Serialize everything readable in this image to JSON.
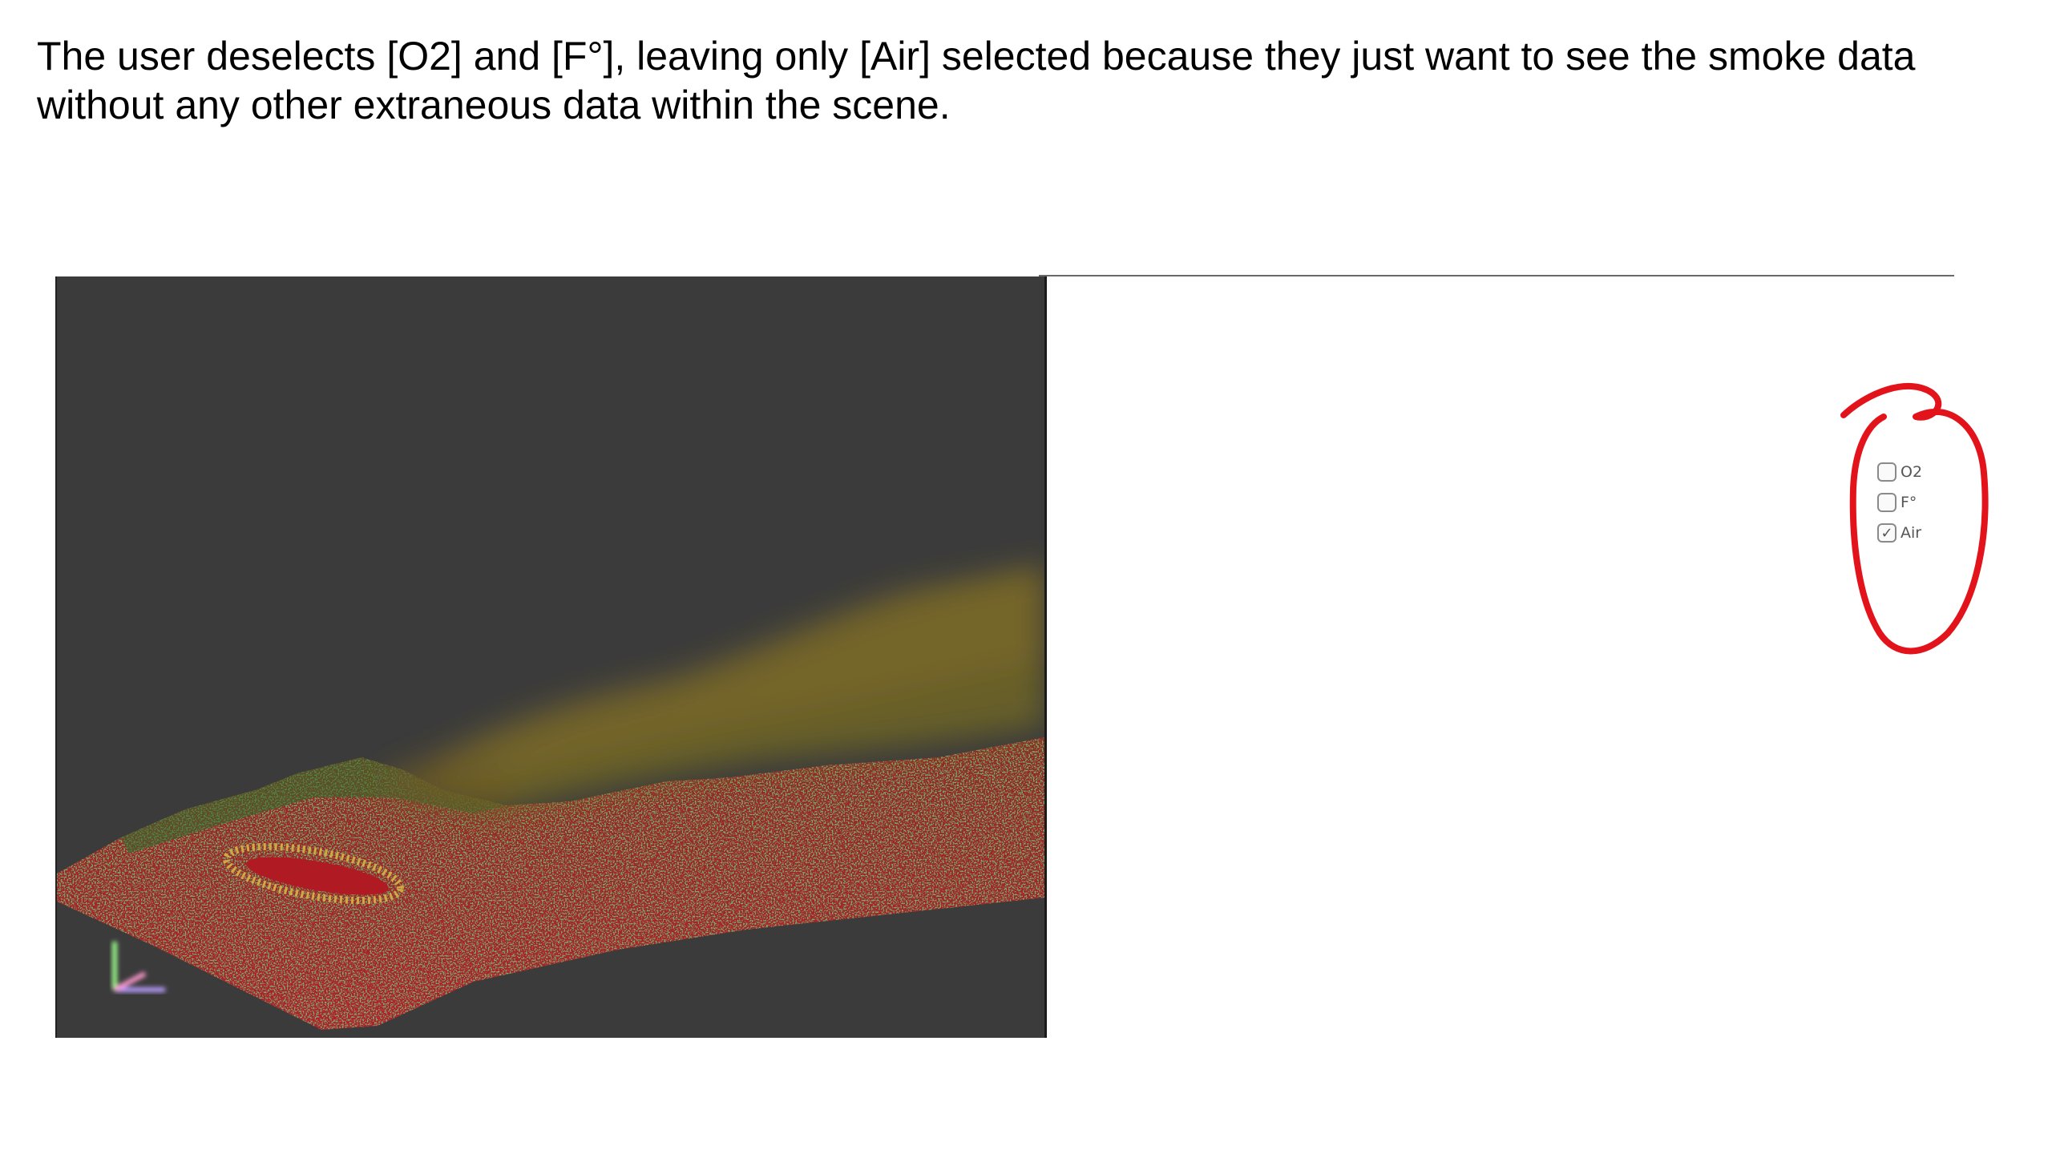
{
  "caption": {
    "line1": "The user deselects [O2] and [F°], leaving only [Air] selected because they just want to see the smoke data",
    "line2": "without any other extraneous data within the scene."
  },
  "layer_panel": {
    "items": [
      {
        "label": "O2",
        "checked": false
      },
      {
        "label": "F°",
        "checked": false
      },
      {
        "label": "Air",
        "checked": true
      }
    ]
  },
  "viewport": {
    "background": "#3b3b3b",
    "terrain_red": "#a3232b",
    "terrain_green": "#2f6b2a",
    "smoke_color": "#7a6a2a",
    "hotspot_color": "#d6b443",
    "axis_colors": {
      "x": "#b89bff",
      "y": "#9bff8a",
      "z": "#ff9ad0"
    }
  },
  "annotation": {
    "color": "#e3131b"
  }
}
